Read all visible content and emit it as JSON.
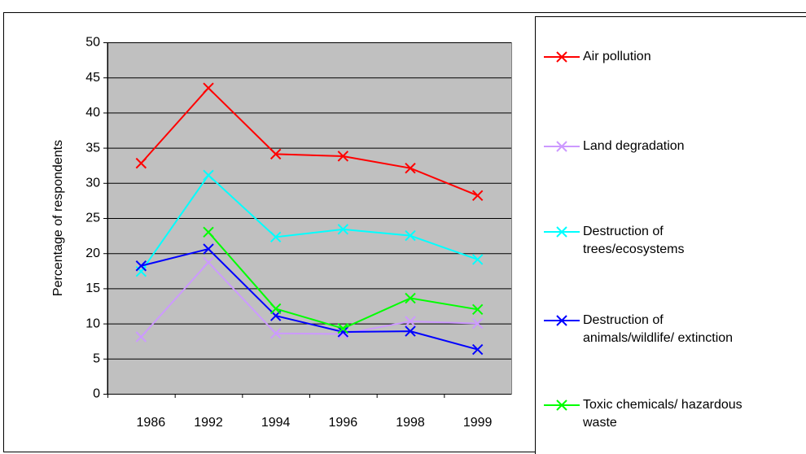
{
  "chart_data": {
    "type": "line",
    "y_label": "Percentage of respondents",
    "categories": [
      "1986",
      "1992",
      "1994",
      "1996",
      "1998",
      "1999"
    ],
    "ylim": [
      0,
      50
    ],
    "yticks": [
      0,
      5,
      10,
      15,
      20,
      25,
      30,
      35,
      40,
      45,
      50
    ],
    "grid": true,
    "series": [
      {
        "name": "Air pollution",
        "color": "#ff0000",
        "values": [
          32.8,
          43.5,
          34.1,
          33.8,
          32.1,
          28.2
        ]
      },
      {
        "name": "Land degradation",
        "color": "#cc99ff",
        "values": [
          8.1,
          18.7,
          8.6,
          8.5,
          10.3,
          10.0
        ]
      },
      {
        "name": "Destruction of\ntrees/ecosystems",
        "color": "#00ffff",
        "values": [
          17.4,
          31.1,
          22.3,
          23.4,
          22.5,
          19.1
        ]
      },
      {
        "name": "Destruction of\nanimals/wildlife/ extinction",
        "color": "#0000ff",
        "values": [
          18.2,
          20.6,
          11.1,
          8.8,
          8.9,
          6.3
        ]
      },
      {
        "name": "Toxic chemicals/ hazardous\nwaste",
        "color": "#00ff00",
        "values": [
          null,
          23.0,
          12.1,
          9.3,
          13.6,
          12.0
        ]
      }
    ]
  }
}
